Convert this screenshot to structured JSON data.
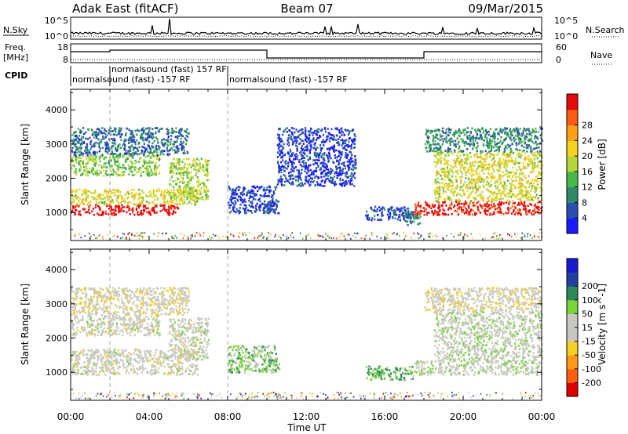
{
  "header": {
    "station": "Adak East (fitACF)",
    "beam": "Beam 07",
    "date": "09/Mar/2015"
  },
  "strips": {
    "nsky_label": "N.Sky",
    "nsearch_label": "N.Search",
    "nsky_ticks": [
      "10^5",
      "10^0"
    ],
    "freq_label_1": "Freq.",
    "freq_label_2": "[MHz]",
    "freq_ticks": [
      "18",
      "8"
    ],
    "nave_label": "Nave",
    "nave_ticks": [
      "60",
      "0"
    ],
    "cpid_label": "CPID",
    "cpid_segments": [
      {
        "label": "normalsound (fast) -157 RF",
        "start_hour": 0.0,
        "end_hour": 2.0
      },
      {
        "label": "normalsound (fast) 157 RF",
        "start_hour": 2.0,
        "end_hour": 8.0
      },
      {
        "label": "normalsound (fast) -157 RF",
        "start_hour": 8.0,
        "end_hour": 24.0
      }
    ]
  },
  "colors": {
    "power": [
      "#1a1aff",
      "#2a4fb0",
      "#2f8a6a",
      "#48b848",
      "#b5d63a",
      "#f2d21e",
      "#ff9f18",
      "#ff5a14",
      "#e80a0a"
    ],
    "velocity": [
      "#e00000",
      "#ff6010",
      "#ff9a18",
      "#f4d020",
      "#c8c8c0",
      "#c8c8c0",
      "#7ad43c",
      "#2e8a5a",
      "#2040a0",
      "#1a1ad0"
    ]
  },
  "chart_data": [
    {
      "type": "heatmap",
      "name": "power",
      "title": "",
      "xlabel": "Time UT",
      "ylabel": "Slant Range [km]",
      "xlim_hours": [
        0,
        24
      ],
      "ylim": [
        180,
        4600
      ],
      "x_tick_labels": [
        "00:00",
        "04:00",
        "08:00",
        "12:00",
        "16:00",
        "20:00",
        "00:00"
      ],
      "y_tick_labels": [
        "1000",
        "2000",
        "3000",
        "4000"
      ],
      "colorbar_label": "Power [dB]",
      "colorbar_ticks": [
        "4",
        "8",
        "12",
        "16",
        "20",
        "24",
        "28"
      ],
      "colorbar_range": [
        0,
        30
      ],
      "regions": [
        {
          "t0": 0.0,
          "t1": 5.5,
          "r0": 950,
          "r1": 1250,
          "level": 8.5
        },
        {
          "t0": 0.0,
          "t1": 6.5,
          "r0": 1250,
          "r1": 1700,
          "level": 4.5
        },
        {
          "t0": 0.0,
          "t1": 4.5,
          "r0": 2100,
          "r1": 2700,
          "level": 3.5
        },
        {
          "t0": 0.0,
          "t1": 6.0,
          "r0": 2700,
          "r1": 3500,
          "level": 1.5
        },
        {
          "t0": 5.0,
          "t1": 7.0,
          "r0": 1400,
          "r1": 2600,
          "level": 4.0
        },
        {
          "t0": 8.0,
          "t1": 10.5,
          "r0": 1000,
          "r1": 1800,
          "level": 0.8
        },
        {
          "t0": 9.8,
          "t1": 10.6,
          "r0": 1000,
          "r1": 1400,
          "level": 1.2
        },
        {
          "t0": 10.5,
          "t1": 14.5,
          "r0": 1800,
          "r1": 3500,
          "level": 0.6
        },
        {
          "t0": 15.0,
          "t1": 17.5,
          "r0": 800,
          "r1": 1200,
          "level": 0.9
        },
        {
          "t0": 16.8,
          "t1": 17.8,
          "r0": 650,
          "r1": 1050,
          "level": 1.8
        },
        {
          "t0": 17.5,
          "t1": 24.0,
          "r0": 950,
          "r1": 1350,
          "level": 8.0
        },
        {
          "t0": 18.5,
          "t1": 24.0,
          "r0": 1350,
          "r1": 2800,
          "level": 4.5
        },
        {
          "t0": 18.0,
          "t1": 24.0,
          "r0": 2800,
          "r1": 3500,
          "level": 2.0
        }
      ]
    },
    {
      "type": "heatmap",
      "name": "velocity",
      "title": "",
      "xlabel": "Time UT",
      "ylabel": "Slant Range [km]",
      "xlim_hours": [
        0,
        24
      ],
      "ylim": [
        180,
        4600
      ],
      "x_tick_labels": [
        "00:00",
        "04:00",
        "08:00",
        "12:00",
        "16:00",
        "20:00",
        "00:00"
      ],
      "y_tick_labels": [
        "1000",
        "2000",
        "3000",
        "4000"
      ],
      "colorbar_label": "Velocity [m s^-1]",
      "colorbar_ticks": [
        "-200",
        "-100",
        "-50",
        "-15",
        "15",
        "50",
        "100",
        "200"
      ],
      "colorbar_range": [
        -250,
        250
      ],
      "regions": [
        {
          "t0": 0.0,
          "t1": 6.5,
          "r0": 950,
          "r1": 1700,
          "level": 4.5
        },
        {
          "t0": 0.0,
          "t1": 4.5,
          "r0": 2100,
          "r1": 2700,
          "level": 4.5
        },
        {
          "t0": 0.0,
          "t1": 6.0,
          "r0": 2700,
          "r1": 3500,
          "level": 4.0
        },
        {
          "t0": 5.0,
          "t1": 7.0,
          "r0": 1400,
          "r1": 2600,
          "level": 4.6
        },
        {
          "t0": 8.0,
          "t1": 10.5,
          "r0": 1000,
          "r1": 1800,
          "level": 5.8
        },
        {
          "t0": 9.8,
          "t1": 10.6,
          "r0": 1000,
          "r1": 1400,
          "level": 6.1
        },
        {
          "t0": 15.0,
          "t1": 17.5,
          "r0": 800,
          "r1": 1200,
          "level": 6.3
        },
        {
          "t0": 17.5,
          "t1": 24.0,
          "r0": 950,
          "r1": 1350,
          "level": 4.8
        },
        {
          "t0": 18.5,
          "t1": 24.0,
          "r0": 1350,
          "r1": 2800,
          "level": 4.9
        },
        {
          "t0": 18.0,
          "t1": 24.0,
          "r0": 2800,
          "r1": 3500,
          "level": 4.2
        }
      ]
    }
  ]
}
